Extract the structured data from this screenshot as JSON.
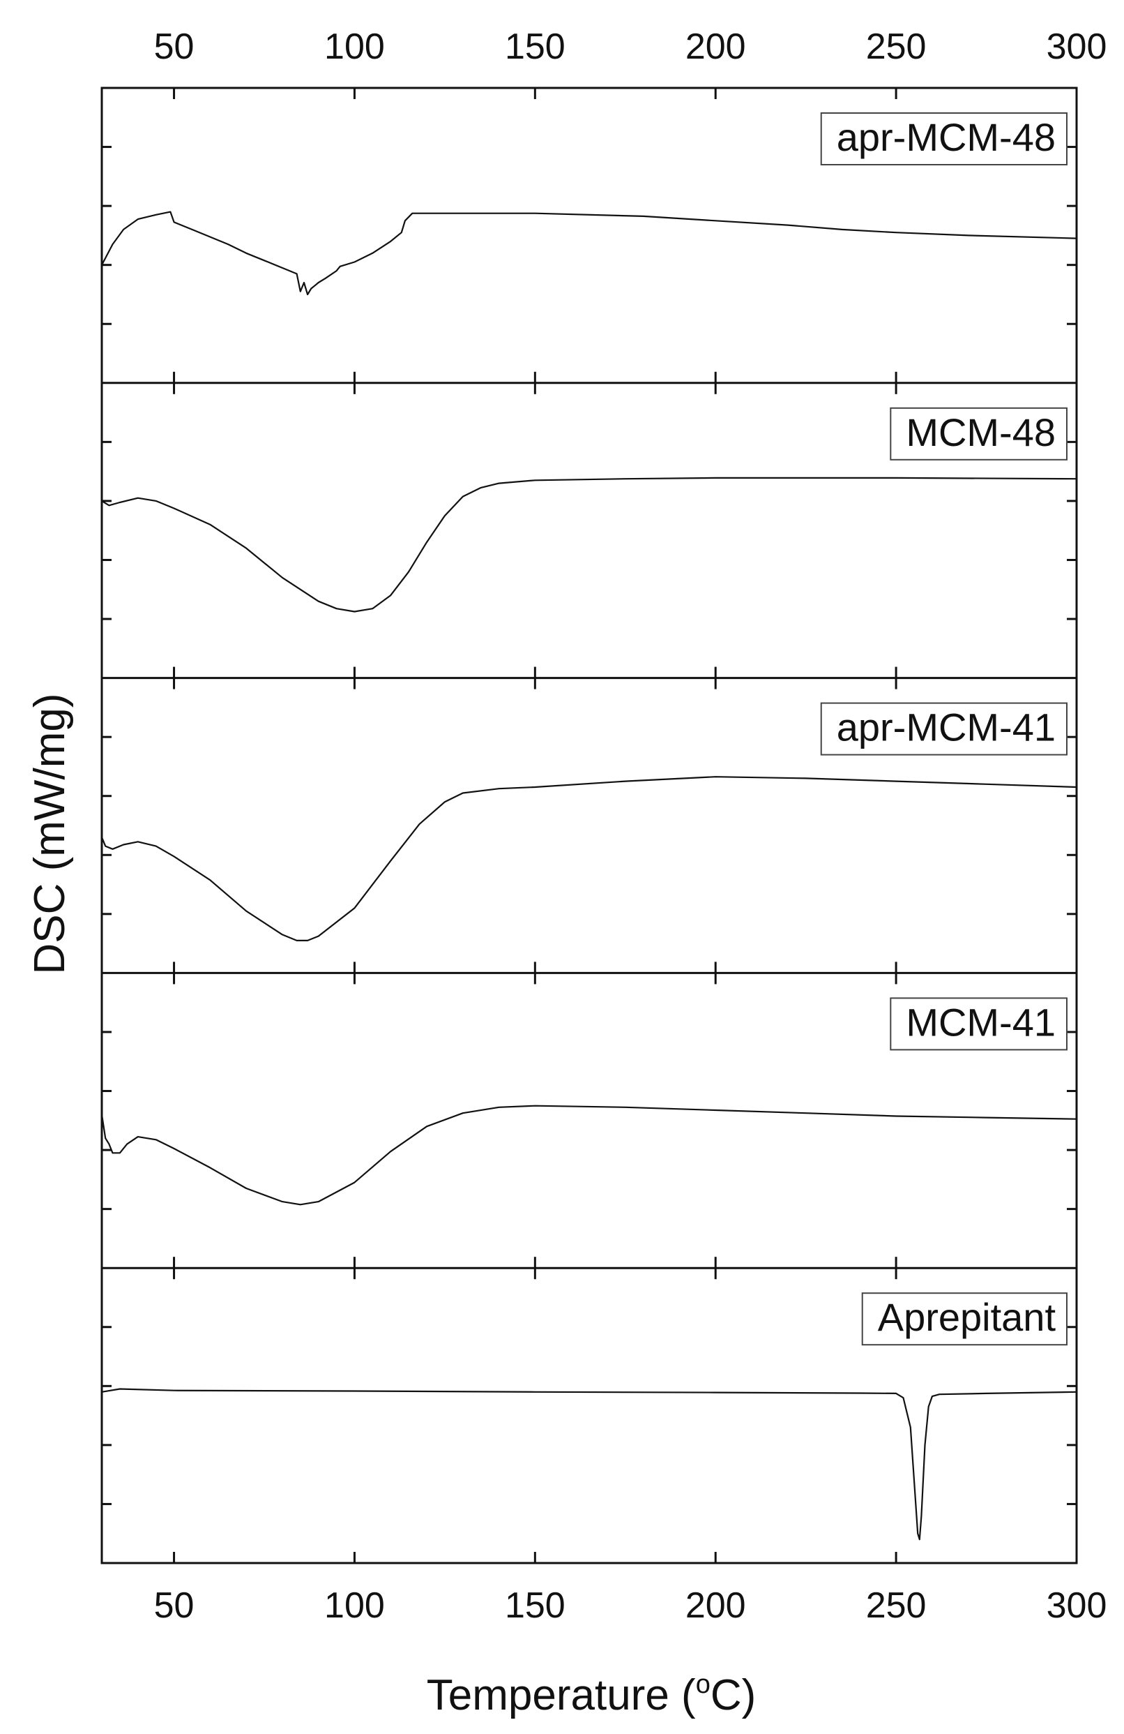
{
  "chart_data": {
    "type": "line",
    "xlabel_prefix": "Temperature (",
    "xlabel_unit_sup": "o",
    "xlabel_suffix": "C)",
    "ylabel": "DSC (mW/mg)",
    "xlim": [
      30,
      300
    ],
    "x_ticks": [
      50,
      100,
      150,
      200,
      250,
      300
    ],
    "x_tick_labels_top": [
      "50",
      "100",
      "150",
      "200",
      "250",
      "300"
    ],
    "x_tick_labels_bottom": [
      "50",
      "100",
      "150",
      "200",
      "250",
      "300"
    ],
    "y_ticks_per_panel": 4,
    "layout": "stacked-panels",
    "line_color": "#111111",
    "panels": [
      {
        "name": "apr-MCM-48",
        "ylim": [
          0,
          1
        ],
        "points": [
          [
            30,
            0.4
          ],
          [
            33,
            0.47
          ],
          [
            36,
            0.52
          ],
          [
            40,
            0.555
          ],
          [
            45,
            0.57
          ],
          [
            49,
            0.58
          ],
          [
            50,
            0.545
          ],
          [
            55,
            0.52
          ],
          [
            60,
            0.495
          ],
          [
            65,
            0.47
          ],
          [
            70,
            0.44
          ],
          [
            75,
            0.415
          ],
          [
            80,
            0.39
          ],
          [
            84,
            0.37
          ],
          [
            85,
            0.31
          ],
          [
            86,
            0.34
          ],
          [
            87,
            0.3
          ],
          [
            88,
            0.32
          ],
          [
            89,
            0.33
          ],
          [
            90,
            0.34
          ],
          [
            92,
            0.355
          ],
          [
            95,
            0.38
          ],
          [
            96,
            0.395
          ],
          [
            100,
            0.41
          ],
          [
            105,
            0.44
          ],
          [
            110,
            0.48
          ],
          [
            113,
            0.51
          ],
          [
            114,
            0.55
          ],
          [
            116,
            0.575
          ],
          [
            120,
            0.575
          ],
          [
            150,
            0.575
          ],
          [
            180,
            0.565
          ],
          [
            200,
            0.55
          ],
          [
            220,
            0.535
          ],
          [
            235,
            0.52
          ],
          [
            250,
            0.51
          ],
          [
            270,
            0.5
          ],
          [
            300,
            0.49
          ]
        ]
      },
      {
        "name": "MCM-48",
        "ylim": [
          0,
          1
        ],
        "points": [
          [
            30,
            0.6
          ],
          [
            32,
            0.585
          ],
          [
            35,
            0.595
          ],
          [
            40,
            0.61
          ],
          [
            45,
            0.6
          ],
          [
            50,
            0.575
          ],
          [
            60,
            0.52
          ],
          [
            70,
            0.44
          ],
          [
            80,
            0.34
          ],
          [
            90,
            0.26
          ],
          [
            95,
            0.235
          ],
          [
            100,
            0.225
          ],
          [
            105,
            0.235
          ],
          [
            110,
            0.28
          ],
          [
            115,
            0.36
          ],
          [
            120,
            0.46
          ],
          [
            125,
            0.55
          ],
          [
            130,
            0.615
          ],
          [
            135,
            0.645
          ],
          [
            140,
            0.66
          ],
          [
            150,
            0.67
          ],
          [
            175,
            0.675
          ],
          [
            200,
            0.678
          ],
          [
            250,
            0.678
          ],
          [
            300,
            0.675
          ]
        ]
      },
      {
        "name": "apr-MCM-41",
        "ylim": [
          0,
          1
        ],
        "points": [
          [
            30,
            0.46
          ],
          [
            31,
            0.43
          ],
          [
            33,
            0.42
          ],
          [
            36,
            0.435
          ],
          [
            40,
            0.445
          ],
          [
            45,
            0.43
          ],
          [
            50,
            0.395
          ],
          [
            60,
            0.315
          ],
          [
            70,
            0.21
          ],
          [
            80,
            0.13
          ],
          [
            84,
            0.11
          ],
          [
            87,
            0.11
          ],
          [
            90,
            0.125
          ],
          [
            100,
            0.22
          ],
          [
            110,
            0.38
          ],
          [
            118,
            0.505
          ],
          [
            125,
            0.58
          ],
          [
            130,
            0.61
          ],
          [
            140,
            0.625
          ],
          [
            150,
            0.63
          ],
          [
            175,
            0.65
          ],
          [
            200,
            0.665
          ],
          [
            225,
            0.66
          ],
          [
            250,
            0.65
          ],
          [
            275,
            0.64
          ],
          [
            300,
            0.63
          ]
        ]
      },
      {
        "name": "MCM-41",
        "ylim": [
          0,
          1
        ],
        "points": [
          [
            30,
            0.52
          ],
          [
            31,
            0.44
          ],
          [
            32,
            0.42
          ],
          [
            33,
            0.39
          ],
          [
            35,
            0.39
          ],
          [
            37,
            0.42
          ],
          [
            40,
            0.445
          ],
          [
            45,
            0.435
          ],
          [
            50,
            0.405
          ],
          [
            60,
            0.34
          ],
          [
            70,
            0.27
          ],
          [
            80,
            0.225
          ],
          [
            85,
            0.215
          ],
          [
            90,
            0.225
          ],
          [
            100,
            0.29
          ],
          [
            110,
            0.395
          ],
          [
            120,
            0.48
          ],
          [
            130,
            0.525
          ],
          [
            140,
            0.545
          ],
          [
            150,
            0.55
          ],
          [
            175,
            0.545
          ],
          [
            200,
            0.535
          ],
          [
            225,
            0.525
          ],
          [
            250,
            0.515
          ],
          [
            275,
            0.51
          ],
          [
            300,
            0.505
          ]
        ]
      },
      {
        "name": "Aprepitant",
        "ylim": [
          0,
          1
        ],
        "points": [
          [
            30,
            0.58
          ],
          [
            35,
            0.59
          ],
          [
            50,
            0.585
          ],
          [
            100,
            0.583
          ],
          [
            150,
            0.58
          ],
          [
            200,
            0.578
          ],
          [
            240,
            0.576
          ],
          [
            250,
            0.575
          ],
          [
            252,
            0.56
          ],
          [
            254,
            0.46
          ],
          [
            255,
            0.28
          ],
          [
            256,
            0.1
          ],
          [
            256.5,
            0.08
          ],
          [
            257,
            0.16
          ],
          [
            258,
            0.4
          ],
          [
            259,
            0.53
          ],
          [
            260,
            0.565
          ],
          [
            262,
            0.572
          ],
          [
            275,
            0.575
          ],
          [
            300,
            0.58
          ]
        ]
      }
    ]
  }
}
